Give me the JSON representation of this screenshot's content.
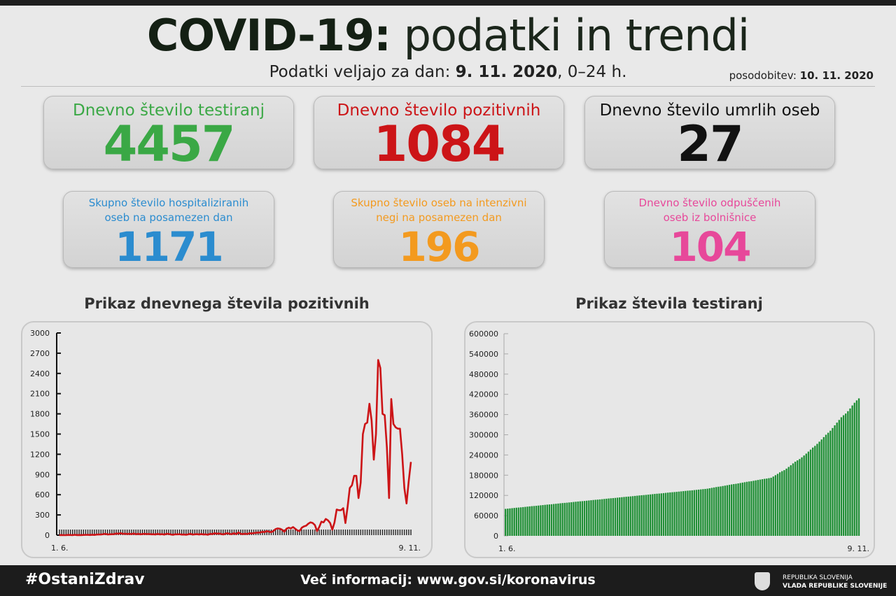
{
  "header": {
    "title_bold": "COVID-19:",
    "title_rest": " podatki in trendi",
    "subtitle_prefix": "Podatki veljajo za dan: ",
    "subtitle_date": "9. 11. 2020",
    "subtitle_suffix": ", 0–24 h.",
    "update_label": "posodobitev: ",
    "update_date": "10. 11. 2020"
  },
  "stats": [
    {
      "label": "Dnevno število testiranj",
      "value": "4457",
      "color": "#3aa845"
    },
    {
      "label": "Dnevno število pozitivnih",
      "value": "1084",
      "color": "#cc1417"
    },
    {
      "label": "Dnevno število umrlih oseb",
      "value": "27",
      "color": "#111111"
    },
    {
      "label1": "Skupno število hospitaliziranih",
      "label2": "oseb na posamezen dan",
      "value": "1171",
      "color": "#2b8ccf"
    },
    {
      "label1": "Skupno število oseb na intenzivni",
      "label2": "negi na posamezen dan",
      "value": "196",
      "color": "#f39a1f"
    },
    {
      "label1": "Dnevno število odpuščenih",
      "label2": "oseb iz bolnišnice",
      "value": "104",
      "color": "#e7489a"
    }
  ],
  "chart_data": [
    {
      "type": "line",
      "title": "Prikaz dnevnega števila pozitivnih",
      "x_start": "1. 6.",
      "x_end": "9. 11.",
      "ylim": [
        0,
        3000
      ],
      "yticks": [
        "0",
        "300",
        "600",
        "900",
        "1200",
        "1500",
        "1800",
        "2100",
        "2400",
        "2700",
        "3000"
      ],
      "color": "#cc1417",
      "values": [
        1,
        2,
        0,
        1,
        3,
        2,
        0,
        5,
        1,
        2,
        1,
        3,
        4,
        5,
        2,
        6,
        3,
        8,
        10,
        9,
        14,
        20,
        10,
        12,
        14,
        15,
        24,
        20,
        30,
        18,
        22,
        16,
        20,
        14,
        25,
        12,
        20,
        12,
        16,
        20,
        15,
        18,
        12,
        14,
        10,
        20,
        11,
        15,
        8,
        20,
        18,
        10,
        5,
        13,
        12,
        14,
        8,
        10,
        6,
        12,
        20,
        8,
        12,
        15,
        10,
        16,
        10,
        12,
        6,
        20,
        14,
        30,
        20,
        25,
        18,
        10,
        22,
        28,
        18,
        15,
        30,
        14,
        40,
        20,
        15,
        22,
        16,
        28,
        25,
        30,
        35,
        38,
        40,
        50,
        45,
        60,
        50,
        45,
        60,
        90,
        100,
        95,
        80,
        50,
        95,
        110,
        100,
        120,
        95,
        70,
        60,
        110,
        130,
        140,
        170,
        190,
        180,
        150,
        60,
        120,
        200,
        190,
        240,
        220,
        180,
        80,
        190,
        380,
        370,
        370,
        400,
        180,
        420,
        700,
        740,
        880,
        880,
        550,
        780,
        1500,
        1650,
        1670,
        1950,
        1700,
        1120,
        1500,
        2600,
        2480,
        1800,
        1780,
        1300,
        550,
        2020,
        1650,
        1600,
        1580,
        1580,
        1200,
        700,
        470,
        800,
        1084
      ]
    },
    {
      "type": "bar",
      "title": "Prikaz števila testiranj",
      "x_start": "1. 6.",
      "x_end": "9. 11.",
      "ylim": [
        0,
        600000
      ],
      "yticks": [
        "0",
        "60000",
        "120000",
        "180000",
        "240000",
        "300000",
        "360000",
        "420000",
        "480000",
        "540000",
        "600000"
      ],
      "color": "#1f8f35",
      "values": [
        80000,
        80700,
        81400,
        82100,
        82800,
        83500,
        84000,
        84600,
        85300,
        86000,
        86700,
        87400,
        88100,
        88600,
        89200,
        89900,
        90600,
        91300,
        92000,
        92700,
        93200,
        93800,
        94500,
        95200,
        95900,
        96600,
        97300,
        97800,
        98400,
        99100,
        99800,
        100500,
        101200,
        101900,
        102500,
        103000,
        103600,
        104300,
        105000,
        105700,
        106400,
        107000,
        107500,
        108100,
        108800,
        109500,
        110200,
        110900,
        111500,
        112000,
        112600,
        113300,
        114000,
        114700,
        115400,
        116000,
        116500,
        117100,
        117800,
        118500,
        119200,
        119900,
        120500,
        121000,
        121600,
        122300,
        123000,
        123700,
        124400,
        125000,
        125500,
        126100,
        126800,
        127500,
        128200,
        128900,
        129500,
        130000,
        130600,
        131300,
        132000,
        132700,
        133400,
        134000,
        134500,
        135100,
        135800,
        136500,
        137200,
        137900,
        138600,
        139200,
        140000,
        141200,
        142400,
        143600,
        144800,
        145800,
        146600,
        147800,
        149000,
        150200,
        151400,
        152600,
        153600,
        154400,
        155600,
        156800,
        158000,
        159200,
        160400,
        161400,
        162200,
        163400,
        164600,
        165800,
        167000,
        168200,
        169200,
        170000,
        171200,
        172400,
        176000,
        180000,
        184000,
        188500,
        192000,
        195000,
        199500,
        204500,
        209500,
        215000,
        220000,
        224000,
        228000,
        233000,
        238500,
        244000,
        250000,
        256000,
        262000,
        267000,
        273000,
        279500,
        286000,
        293000,
        300000,
        306000,
        312000,
        320000,
        328000,
        336000,
        344000,
        352000,
        358000,
        363000,
        370000,
        378000,
        387000,
        395000,
        402000,
        408000
      ]
    }
  ],
  "footer": {
    "hashtag": "#OstaniZdrav",
    "more_info": "Več informacij: www.gov.si/koronavirus",
    "gov_line1": "REPUBLIKA SLOVENIJA",
    "gov_line2": "VLADA REPUBLIKE SLOVENIJE"
  }
}
